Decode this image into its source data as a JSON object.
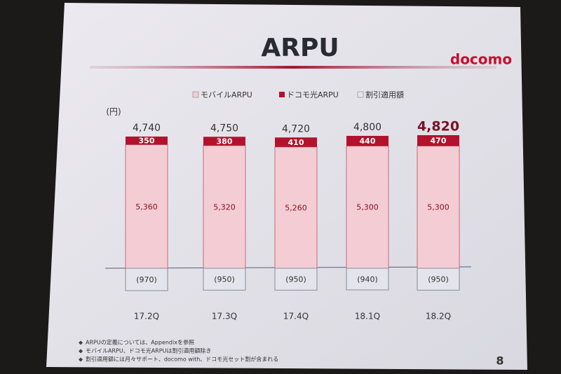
{
  "title": "ARPU",
  "logo": "docomo",
  "page_number": "8",
  "footnotes": [
    "ARPUの定義については、Appendixを参照",
    "モバイルARPU、ドコモ光ARPUは割引適用額除き",
    "割引適用額には月々サポート、docomo with、ドコモ光セット割が含まれる"
  ],
  "chart_data": {
    "type": "stacked_bar",
    "unit": "(円)",
    "categories": [
      "17.2Q",
      "17.3Q",
      "17.4Q",
      "18.1Q",
      "18.2Q"
    ],
    "series": [
      {
        "name": "モバイルARPU",
        "color": "#f3cdd3",
        "values": [
          5360,
          5320,
          5260,
          5300,
          5300
        ],
        "value_labels": [
          "5,360",
          "5,320",
          "5,260",
          "5,300",
          "5,300"
        ]
      },
      {
        "name": "ドコモ光ARPU",
        "color": "#b3122d",
        "values": [
          350,
          380,
          410,
          440,
          470
        ]
      },
      {
        "name": "割引適用額",
        "color": "#e4e4ec",
        "values": [
          -970,
          -950,
          -950,
          -940,
          -950
        ],
        "value_labels": [
          "(970)",
          "(950)",
          "(950)",
          "(940)",
          "(950)"
        ]
      }
    ],
    "totals": [
      4740,
      4750,
      4720,
      4800,
      4820
    ],
    "total_labels": [
      "4,740",
      "4,750",
      "4,720",
      "4,800",
      "4,820"
    ]
  }
}
